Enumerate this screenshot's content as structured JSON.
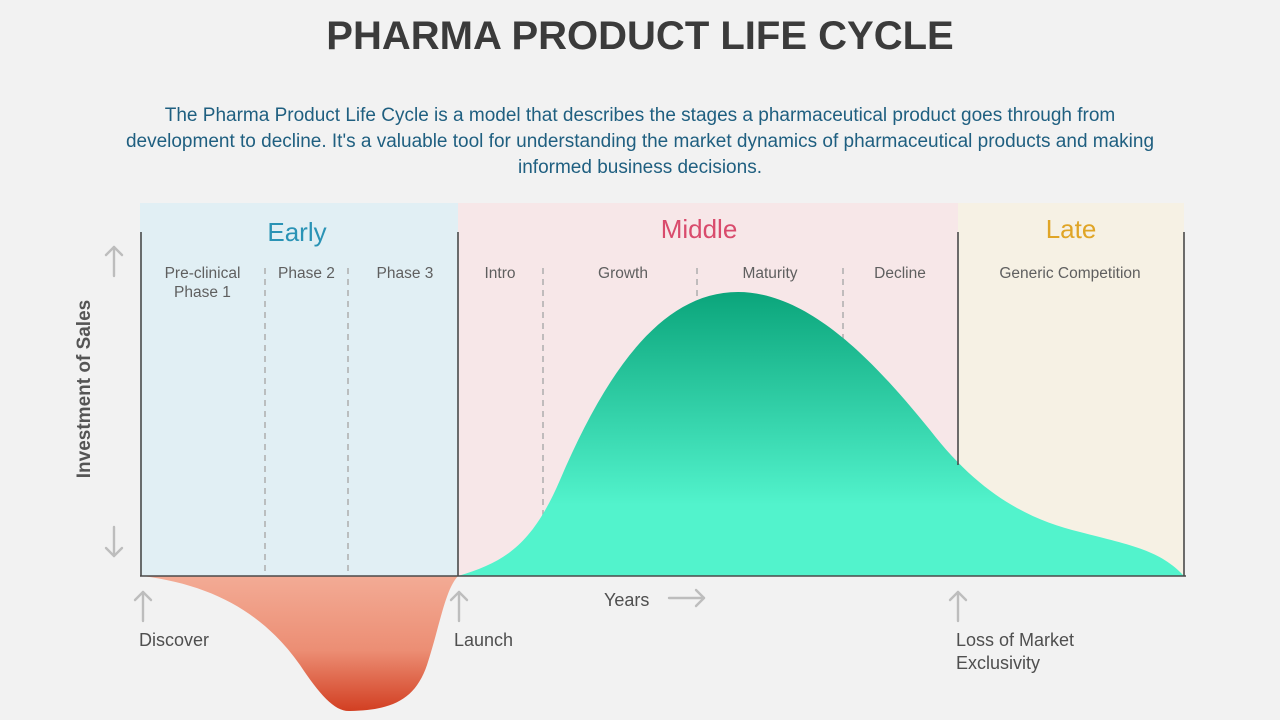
{
  "title": "PHARMA PRODUCT LIFE CYCLE",
  "description": "The Pharma Product Life Cycle is a model that describes the stages a pharmaceutical product goes through from development to decline. It's a valuable tool for understanding the market dynamics of pharmaceutical products and making informed business decisions.",
  "y_axis_label": "Investment of Sales",
  "x_axis_label": "Years",
  "stages": {
    "early": {
      "title": "Early",
      "color": "#2a93b5",
      "bg": "#e1eff4",
      "phases": [
        "Pre-clinical Phase 1",
        "Phase 2",
        "Phase 3"
      ]
    },
    "middle": {
      "title": "Middle",
      "color": "#d94b6c",
      "bg": "#f7e7e8",
      "phases": [
        "Intro",
        "Growth",
        "Maturity",
        "Decline"
      ]
    },
    "late": {
      "title": "Late",
      "color": "#e0a526",
      "bg": "#f6f1e4",
      "phases": [
        "Generic Competition"
      ]
    }
  },
  "milestones": {
    "discover": "Discover",
    "launch": "Launch",
    "loss_of_exclusivity": "Loss of Market Exclusivity"
  },
  "colors": {
    "investment_top": "#f3ab95",
    "investment_bottom": "#d23f22",
    "sales_top": "#0ba57b",
    "sales_bottom": "#52f3cc"
  }
}
